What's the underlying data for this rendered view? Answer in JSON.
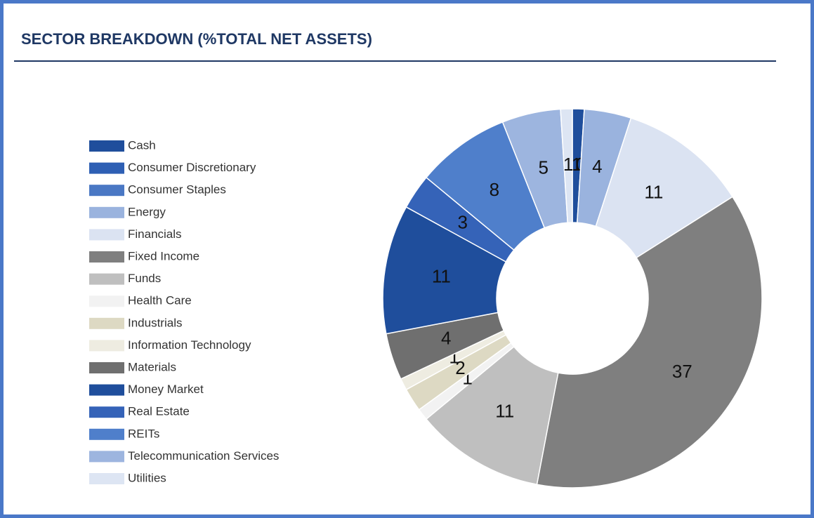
{
  "chart_data": {
    "type": "donut",
    "title": "SECTOR BREAKDOWN (%TOTAL NET ASSETS)",
    "categories": [
      "Cash",
      "Consumer Discretionary",
      "Consumer Staples",
      "Energy",
      "Financials",
      "Fixed Income",
      "Funds",
      "Health Care",
      "Industrials",
      "Information Technology",
      "Materials",
      "Money Market",
      "Real Estate",
      "REITs",
      "Telecommunication Services",
      "Utilities"
    ],
    "values": [
      1,
      0,
      0,
      4,
      11,
      37,
      11,
      1,
      2,
      1,
      4,
      11,
      3,
      8,
      5,
      1
    ],
    "colors": [
      "#1f4e9c",
      "#2e5fb4",
      "#4a78c4",
      "#9ab3de",
      "#dbe3f2",
      "#7f7f7f",
      "#bfbfbf",
      "#f2f2f2",
      "#ddd9c3",
      "#eeece1",
      "#6f6f6f",
      "#1f4e9c",
      "#3563b8",
      "#4f7fcb",
      "#9db5df",
      "#dde5f3"
    ],
    "legend": "left"
  }
}
